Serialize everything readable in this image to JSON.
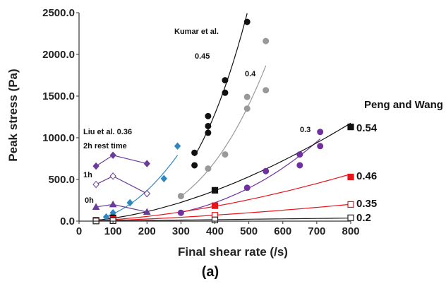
{
  "chart_data": {
    "type": "scatter",
    "xlabel": "Final shear rate (/s)",
    "ylabel": "Peak stress (Pa)",
    "caption": "(a)",
    "xlim": [
      0,
      800
    ],
    "ylim": [
      0,
      2500
    ],
    "xticks": [
      "0",
      "100",
      "200",
      "300",
      "400",
      "500",
      "600",
      "700",
      "800"
    ],
    "yticks": [
      "0.0",
      "500.0",
      "1000.0",
      "1500.0",
      "2000.0",
      "2500.0"
    ],
    "grid": false,
    "annotations": {
      "kumar": "Kumar et al.",
      "k045": "0.45",
      "k04": "0.4",
      "k03": "0.3",
      "liu1": "Liu et al. 0.36",
      "liu2": "2h rest time",
      "h1": "1h",
      "h0": "0h",
      "peng": "Peng and Wang",
      "p054": "0.54",
      "p046": "0.46",
      "p035": "0.35",
      "p02": "0.2"
    },
    "series": [
      {
        "label_key": "k045",
        "color": "#111111",
        "marker": "circle",
        "fit": "power",
        "x": [
          340,
          340,
          380,
          380,
          380,
          430,
          430,
          495
        ],
        "y": [
          670,
          820,
          1060,
          1260,
          1140,
          1540,
          1690,
          2390
        ]
      },
      {
        "label_key": "k04",
        "color": "#999999",
        "marker": "circle",
        "fit": "power",
        "x": [
          300,
          380,
          430,
          495,
          495,
          550,
          550
        ],
        "y": [
          300,
          630,
          800,
          1350,
          1490,
          1570,
          2160
        ]
      },
      {
        "label_key": "k03",
        "color": "#7030a0",
        "marker": "circle",
        "fit": "power",
        "x": [
          300,
          495,
          550,
          650,
          650,
          710,
          710
        ],
        "y": [
          100,
          400,
          600,
          670,
          800,
          900,
          1070
        ]
      },
      {
        "label_key": "blue",
        "color": "#2e86c1",
        "marker": "diamond",
        "fit": "power",
        "x": [
          80,
          100,
          150,
          200,
          250,
          290
        ],
        "y": [
          50,
          100,
          220,
          330,
          510,
          900
        ]
      },
      {
        "label_key": "liu1",
        "color": "#6a3d9a",
        "marker": "diamond",
        "fit": "line",
        "x": [
          50,
          100,
          200
        ],
        "y": [
          660,
          790,
          690
        ]
      },
      {
        "label_key": "h1",
        "color": "#6a3d9a",
        "marker": "diamond-open",
        "fit": "line",
        "x": [
          50,
          100,
          200
        ],
        "y": [
          440,
          540,
          330
        ]
      },
      {
        "label_key": "h0",
        "color": "#6a3d9a",
        "marker": "triangle",
        "fit": "line",
        "x": [
          50,
          100,
          200
        ],
        "y": [
          170,
          200,
          110
        ]
      },
      {
        "label_key": "p054",
        "color": "#111111",
        "marker": "square",
        "fit": "power",
        "x": [
          50,
          100,
          400,
          800
        ],
        "y": [
          10,
          40,
          370,
          1130
        ]
      },
      {
        "label_key": "p046",
        "color": "#e8141b",
        "marker": "square",
        "fit": "power",
        "x": [
          50,
          100,
          400,
          800
        ],
        "y": [
          5,
          20,
          185,
          530
        ]
      },
      {
        "label_key": "p035",
        "color": "#e8141b",
        "marker": "square-open",
        "fit": "power",
        "x": [
          50,
          100,
          400,
          800
        ],
        "y": [
          3,
          10,
          70,
          200
        ]
      },
      {
        "label_key": "p02",
        "color": "#222222",
        "marker": "square-open",
        "fit": "power",
        "x": [
          50,
          100,
          400,
          800
        ],
        "y": [
          2,
          5,
          15,
          40
        ]
      }
    ]
  }
}
